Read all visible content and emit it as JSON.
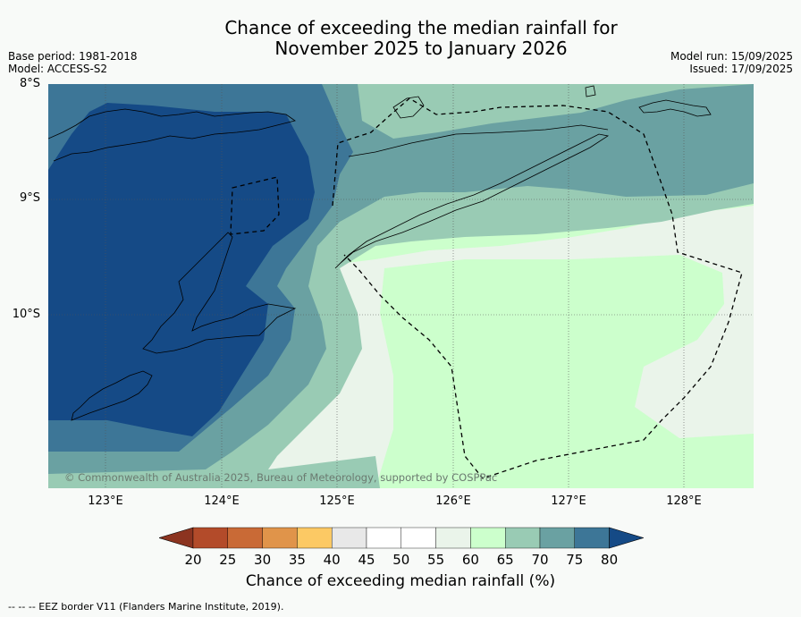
{
  "title_line1": "Chance of exceeding the median rainfall for",
  "title_line2": "November 2025 to January 2026",
  "base_period": "Base period: 1981-2018",
  "model": "Model: ACCESS-S2",
  "model_run": "Model run: 15/09/2025",
  "issued": "Issued: 17/09/2025",
  "lat_labels": [
    "8°S",
    "9°S",
    "10°S"
  ],
  "lon_labels": [
    "123°E",
    "124°E",
    "125°E",
    "126°E",
    "127°E",
    "128°E"
  ],
  "copyright": "© Commonwealth of Australia 2025, Bureau of Meteorology, supported by COSPPac",
  "colorbar": {
    "ticks": [
      "20",
      "25",
      "30",
      "35",
      "40",
      "45",
      "50",
      "55",
      "60",
      "65",
      "70",
      "75",
      "80"
    ],
    "colors": [
      "#8c3420",
      "#b34b2a",
      "#c96a36",
      "#e0944a",
      "#fcc964",
      "#e8e8e8",
      "#ffffff",
      "#ffffff",
      "#eaf4ea",
      "#ccffcc",
      "#99cbb4",
      "#6aa1a2",
      "#3d7697",
      "#154a86"
    ],
    "title": "Chance of exceeding median rainfall (%)"
  },
  "footnote": "--  --  -- EEZ border V11 (Flanders Marine Institute, 2019)."
}
